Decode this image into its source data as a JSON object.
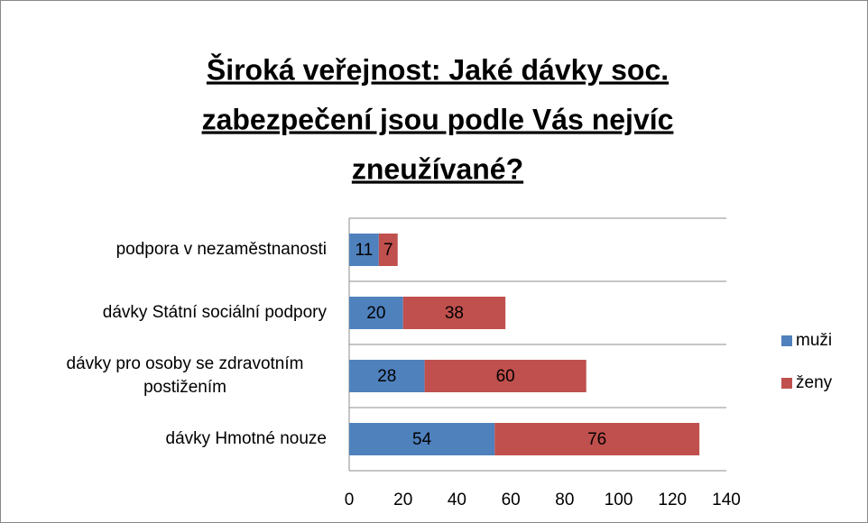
{
  "chart_data": {
    "type": "stacked-bar-horizontal",
    "title": [
      "Široká veřejnost: Jaké dávky soc.",
      "zabezpečení jsou podle Vás nejvíc",
      "zneužívané?"
    ],
    "categories": [
      "podpora v nezaměstnanosti",
      "dávky Státní sociální podpory",
      "dávky pro osoby se zdravotním postižením",
      "dávky Hmotné nouze"
    ],
    "series": [
      {
        "name": "muži",
        "color": "#4f81bd",
        "values": [
          11,
          20,
          28,
          54
        ]
      },
      {
        "name": "ženy",
        "color": "#c0504d",
        "values": [
          7,
          38,
          60,
          76
        ]
      }
    ],
    "xlim": [
      0,
      140
    ],
    "xticks": [
      0,
      20,
      40,
      60,
      80,
      100,
      120,
      140
    ],
    "legend": "right"
  }
}
